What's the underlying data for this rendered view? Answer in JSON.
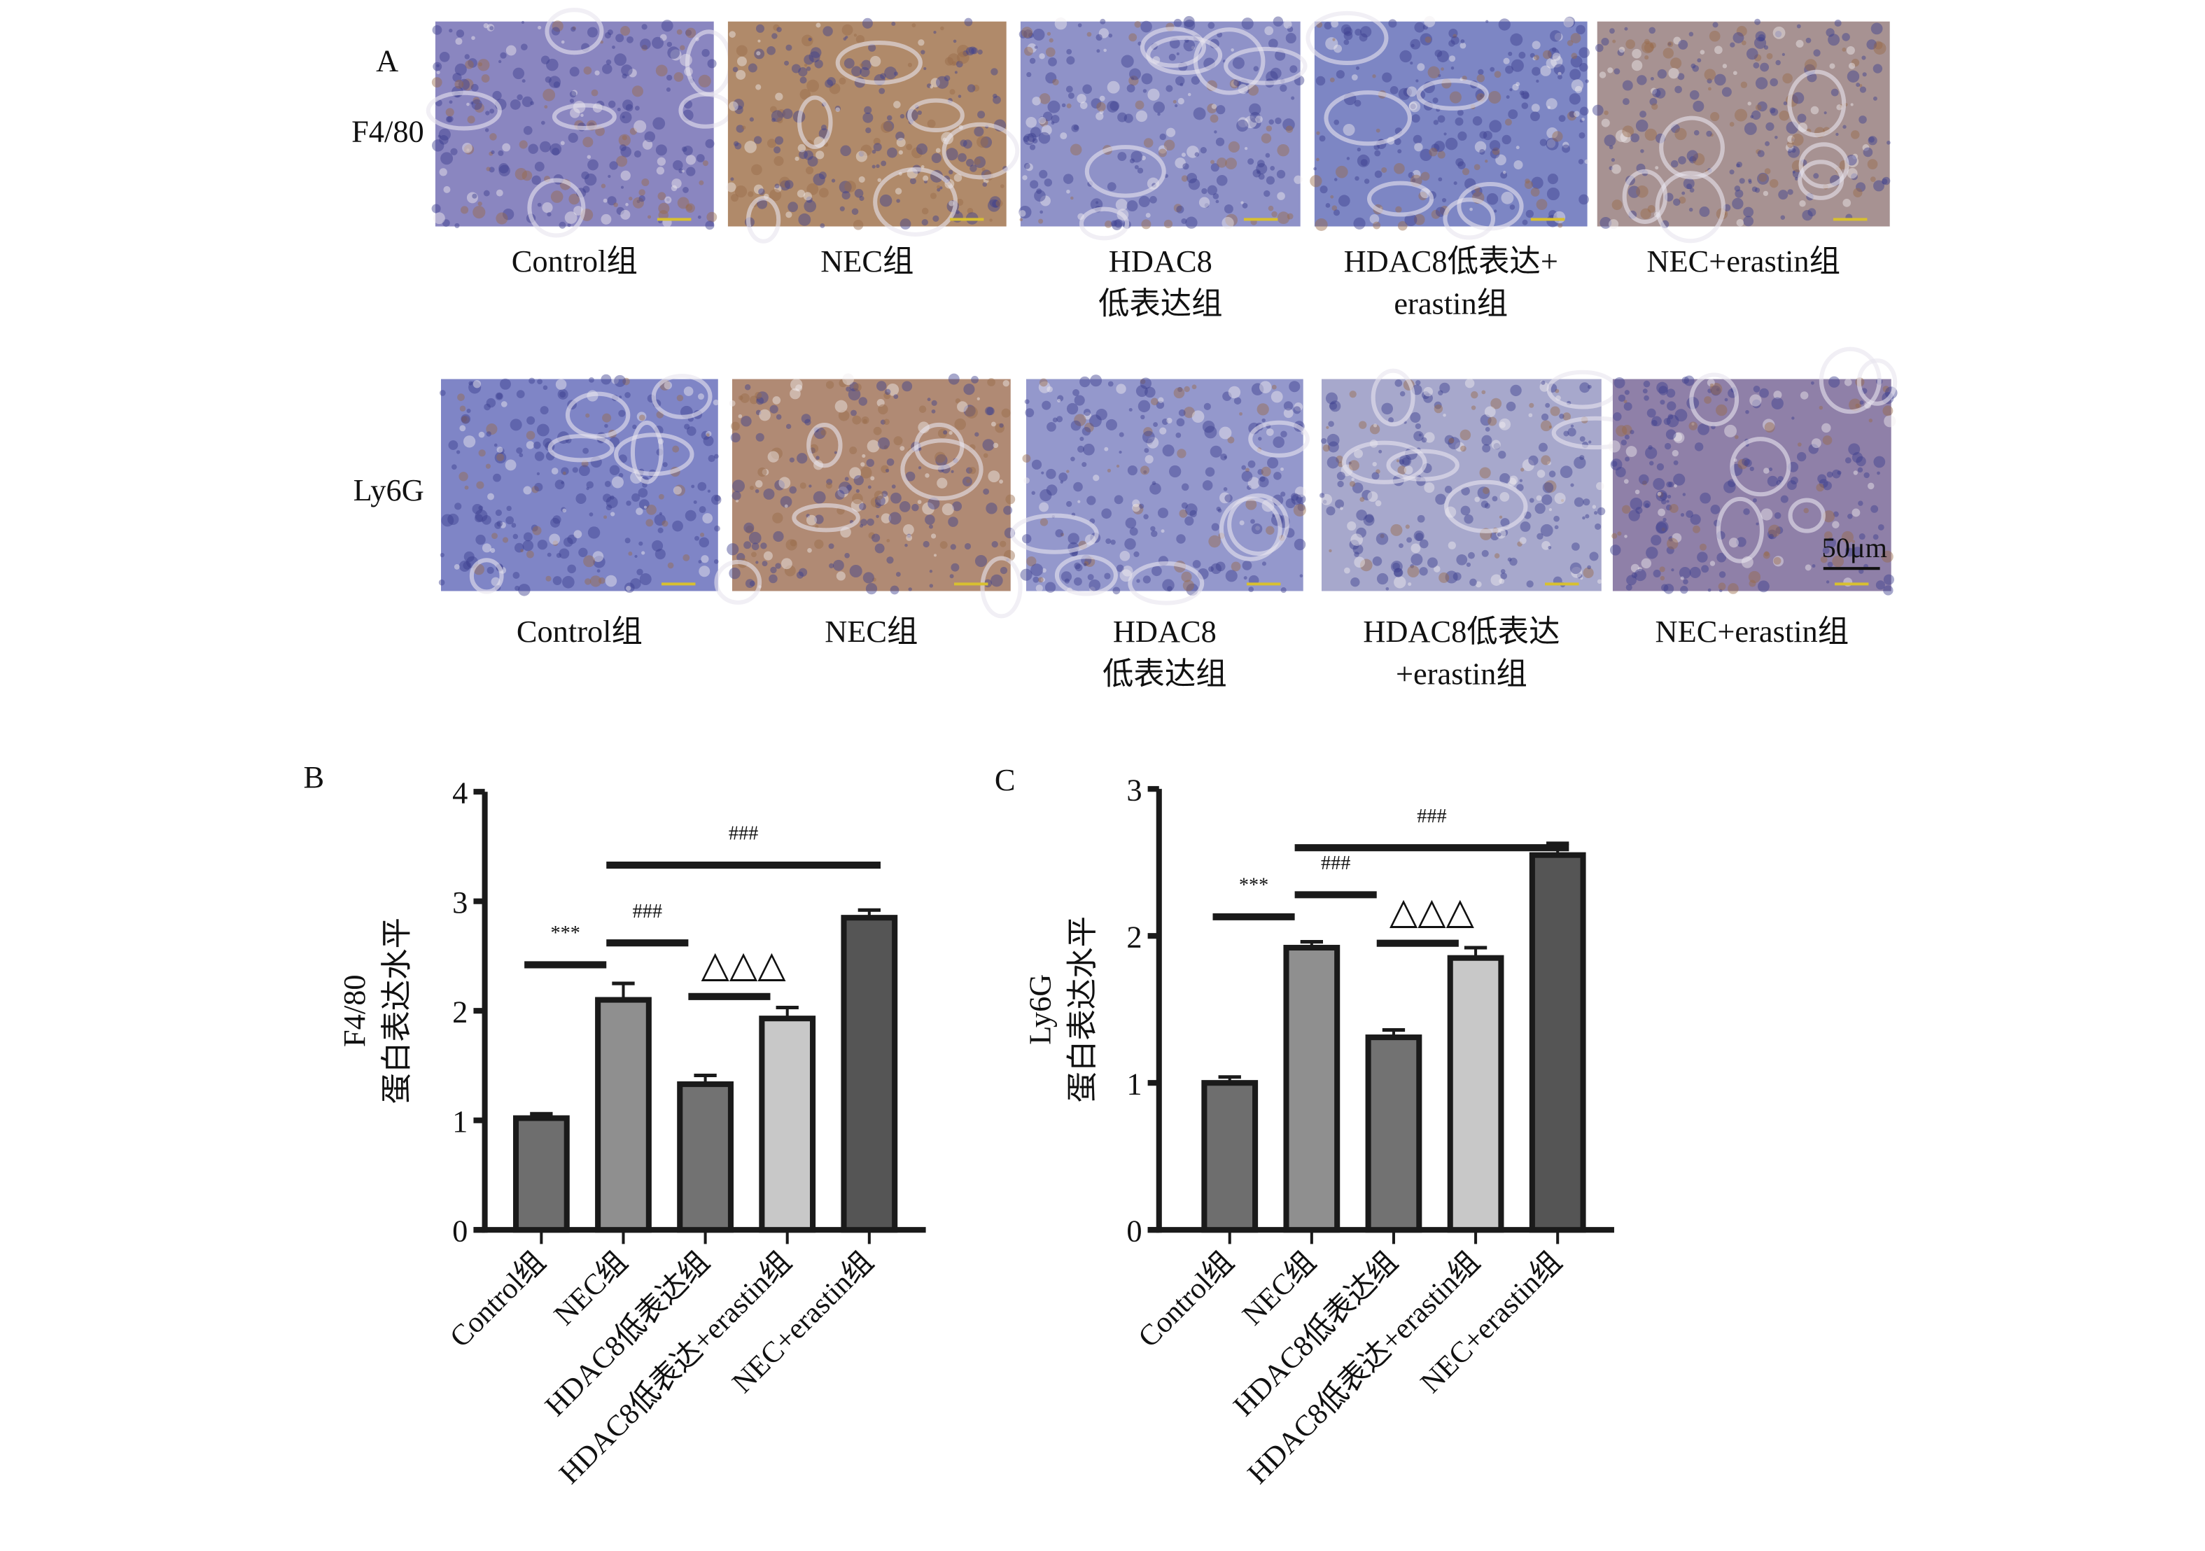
{
  "panel_a": {
    "label": "A",
    "rows": [
      {
        "marker": "F4/80",
        "captions": [
          [
            "Control组"
          ],
          [
            "NEC组"
          ],
          [
            "HDAC8",
            "低表达组"
          ],
          [
            "HDAC8低表达+",
            "erastin组"
          ],
          [
            "NEC+erastin组"
          ]
        ],
        "tones": [
          "#8a86c0",
          "#b08a6a",
          "#8f92c8",
          "#7d86c4",
          "#a79292"
        ]
      },
      {
        "marker": "Ly6G",
        "captions": [
          [
            "Control组"
          ],
          [
            "NEC组"
          ],
          [
            "HDAC8",
            "低表达组"
          ],
          [
            "HDAC8低表达",
            "+erastin组"
          ],
          [
            "NEC+erastin组"
          ]
        ],
        "tones": [
          "#7f85c6",
          "#b08a74",
          "#9498cc",
          "#a7a8cc",
          "#8f80a8"
        ]
      }
    ],
    "scale_bar": "50μm"
  },
  "chart_data": [
    {
      "panel_label": "B",
      "type": "bar",
      "ylabel_lines": [
        "F4/80",
        "蛋白表达水平"
      ],
      "categories": [
        "Control组",
        "NEC组",
        "HDAC8低表达组",
        "HDAC8低表达+erastin组",
        "NEC+erastin组"
      ],
      "values": [
        1.02,
        2.1,
        1.33,
        1.93,
        2.85
      ],
      "errors": [
        0.04,
        0.15,
        0.08,
        0.1,
        0.07
      ],
      "colors": [
        "#6e6e6e",
        "#8f8f8f",
        "#727272",
        "#c8c8c8",
        "#555555"
      ],
      "ylim": [
        0,
        4
      ],
      "yticks": [
        0,
        1,
        2,
        3,
        4
      ],
      "grid": false,
      "annotations": [
        {
          "label": "***",
          "from": 0,
          "to": 1,
          "y": 2.42
        },
        {
          "label": "###",
          "from": 1,
          "to": 2,
          "y": 2.62
        },
        {
          "label": "△△△",
          "from": 2,
          "to": 3,
          "y": 2.13
        },
        {
          "label": "###",
          "from": 1,
          "to": 4,
          "y": 3.33
        }
      ]
    },
    {
      "panel_label": "C",
      "type": "bar",
      "ylabel_lines": [
        "Ly6G",
        "蛋白表达水平"
      ],
      "categories": [
        "Control组",
        "NEC组",
        "HDAC8低表达组",
        "HDAC8低表达+erastin组",
        "NEC+erastin组"
      ],
      "values": [
        1.0,
        1.92,
        1.31,
        1.85,
        2.55
      ],
      "errors": [
        0.04,
        0.04,
        0.05,
        0.07,
        0.08
      ],
      "colors": [
        "#6e6e6e",
        "#8f8f8f",
        "#727272",
        "#c8c8c8",
        "#555555"
      ],
      "ylim": [
        0,
        3
      ],
      "yticks": [
        0,
        1,
        2,
        3
      ],
      "grid": false,
      "annotations": [
        {
          "label": "***",
          "from": 0,
          "to": 1,
          "y": 2.13
        },
        {
          "label": "###",
          "from": 1,
          "to": 2,
          "y": 2.28
        },
        {
          "label": "△△△",
          "from": 2,
          "to": 3,
          "y": 1.95
        },
        {
          "label": "###",
          "from": 1,
          "to": 4,
          "y": 2.6
        }
      ]
    }
  ]
}
